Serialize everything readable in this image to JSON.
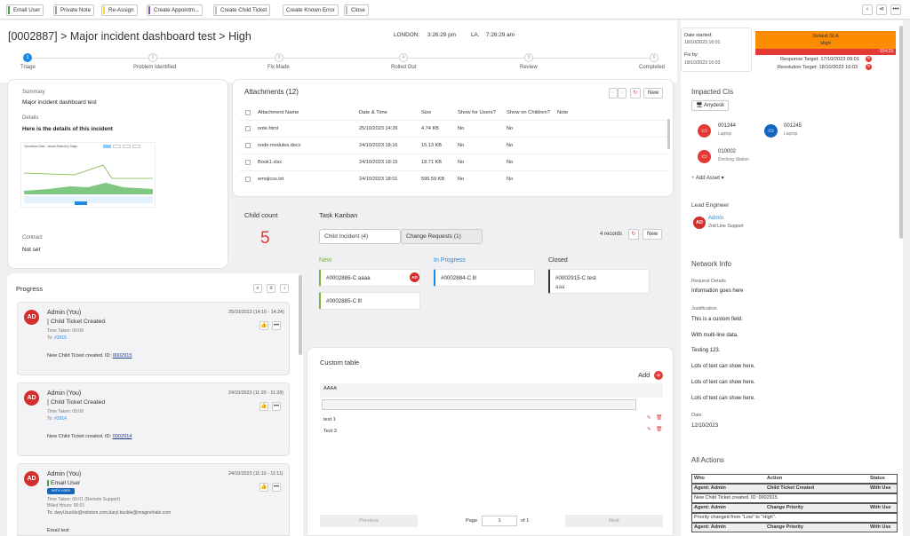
{
  "toolbar": {
    "buttons": [
      {
        "label": "Email User",
        "color": "#43a047"
      },
      {
        "label": "Private Note",
        "color": "#9e9e9e"
      },
      {
        "label": "Re-Assign",
        "color": "#fdd835"
      },
      {
        "label": "Create Appointm...",
        "color": "#7e57c2"
      },
      {
        "label": "Create Child Ticket",
        "color": "#bdbdbd"
      },
      {
        "label": "Create Known Error",
        "color": ""
      },
      {
        "label": "Close",
        "color": "#bdbdbd"
      }
    ]
  },
  "ticket": {
    "title": "[0002887] > Major incident dashboard test > High",
    "clock1_label": "LONDON:",
    "clock1_time": "3:26:29 pm",
    "clock2_label": "LA:",
    "clock2_time": "7:26:29 am"
  },
  "stages": [
    {
      "n": "1",
      "label": "Triage"
    },
    {
      "n": "2",
      "label": "Problem Identified"
    },
    {
      "n": "3",
      "label": "Fix Made"
    },
    {
      "n": "4",
      "label": "Rolled Out"
    },
    {
      "n": "5",
      "label": "Review"
    },
    {
      "n": "6",
      "label": "Completed"
    }
  ],
  "summary": {
    "summary_label": "Summary",
    "summary_value": "Major incident dashboard test",
    "details_label": "Details",
    "details_value": "Here is the details of this incident",
    "contract_label": "Contract",
    "contract_value": "Not set",
    "thumb_title": "Operations Desk - Issues Raised by Stage"
  },
  "attachments": {
    "title": "Attachments (12)",
    "new_label": "New",
    "columns": [
      "Attachment Name",
      "Date & Time",
      "Size",
      "Show for Users?",
      "Show on Children?",
      "Note"
    ],
    "rows": [
      [
        "note.html",
        "25/10/2023 14:26",
        "4.74 KB",
        "No",
        "No"
      ],
      [
        "node modules.docx",
        "24/10/2023 18:16",
        "15.13 KB",
        "No",
        "No"
      ],
      [
        "Book1.xlsx",
        "24/10/2023 18:15",
        "18.71 KB",
        "No",
        "No"
      ],
      [
        "emojicss.txt",
        "24/10/2023 18:01",
        "596.59 KB",
        "No",
        "No"
      ]
    ]
  },
  "child_count": {
    "label": "Child count",
    "value": "5"
  },
  "kanban": {
    "title": "Task Kanban",
    "tab1": "Child Incident (4)",
    "tab2": "Change Requests (1)",
    "records": "4 records",
    "new_label": "New",
    "columns": [
      {
        "name": "New",
        "color": "#7cb342",
        "cards": [
          "#0002886-C aaaa",
          "#0002885-C lll"
        ]
      },
      {
        "name": "In Progress",
        "color": "#1e88e5",
        "cards": [
          "#0002884-C lll"
        ]
      },
      {
        "name": "Closed",
        "color": "#333333",
        "cards": [
          "#0002915-C test"
        ],
        "sub": "aaa"
      }
    ],
    "card_avatar": "AD"
  },
  "custom_table": {
    "title": "Custom table",
    "add_label": "Add",
    "column": "AAAA",
    "rows": [
      "test 1",
      "Test 3"
    ],
    "prev": "Previous",
    "next": "Next",
    "page_label": "Page",
    "page_value": "1",
    "of_label": "of 1"
  },
  "progress": {
    "title": "Progress",
    "entries": [
      {
        "initials": "AD",
        "author": "Admin (You)",
        "action": "Child Ticket Created",
        "date": "25/10/2023 (14:16 - 14:24)",
        "time_taken": "Time Taken: 00:08",
        "to_label": "To:",
        "to_value": "#2915",
        "body": "New Child Ticket created. ID:",
        "link": "0002915"
      },
      {
        "initials": "AD",
        "author": "Admin (You)",
        "action": "Child Ticket Created",
        "date": "24/10/2023 (11:20 - 11:28)",
        "time_taken": "Time Taken: 00:08",
        "to_label": "To:",
        "to_value": "#2914",
        "body": "New Child Ticket created. ID:",
        "link": "0002914"
      },
      {
        "initials": "AD",
        "author": "Admin (You)",
        "action": "Email User",
        "date": "24/10/2023 (11:10 - 11:11)",
        "badge": "WITH USER",
        "time_taken": "Time Taken: 00:01 (Remote Support)",
        "billed": "Billed Hours: 00:01",
        "to_label": "To:",
        "to_value": "daryl.buckle@nolotsm.com,daryl.buckle@imaginehalo.com",
        "body": "Email test"
      }
    ]
  },
  "sla": {
    "date_started_label": "Date started:",
    "date_started": "18/10/2023 16:01",
    "fix_by_label": "Fix by:",
    "fix_by": "18/10/2023 16:03",
    "name": "Default SLA",
    "priority": "High",
    "timer": "-154:23",
    "response_label": "Response Target:",
    "response": "17/10/2023 09:01",
    "resolution_label": "Resolution Target:",
    "resolution": "18/10/2023 16:03"
  },
  "impacted": {
    "title": "Impacted CIs",
    "tag": "Anydesk",
    "assets": [
      {
        "id": "001244",
        "type": "Laptop",
        "color": "#e53935"
      },
      {
        "id": "001245",
        "type": "Laptop",
        "color": "#1565c0"
      },
      {
        "id": "010002",
        "type": "Docking Station",
        "color": "#e53935"
      }
    ],
    "add_label": "Add Asset"
  },
  "lead": {
    "title": "Lead Engineer",
    "initials": "AD",
    "name": "Admin",
    "team": "2nd Line Support"
  },
  "network": {
    "title": "Network Info",
    "request_label": "Request Details",
    "request_value": "Information goes here",
    "justification_label": "Justification",
    "lines": [
      "This is a custom field.",
      "With multi-line data.",
      "Testing 123.",
      "Lots of text can show here.",
      "Lots of text can show here.",
      "Lots of text can show here."
    ],
    "date_label": "Date",
    "date_value": "12/10/2023"
  },
  "all_actions": {
    "title": "All Actions",
    "headers": [
      "Who",
      "Action",
      "Status"
    ],
    "rows": [
      {
        "who": "Agent: Admin",
        "action": "Child Ticket Created",
        "status": "With Use",
        "note": "New Child Ticket created. ID: 0002915"
      },
      {
        "who": "Agent: Admin",
        "action": "Change Priority",
        "status": "With Use",
        "note": "Priority changed from \"Low\" to \"High\"."
      },
      {
        "who": "Agent: Admin",
        "action": "Change Priority",
        "status": "With Use"
      }
    ]
  }
}
